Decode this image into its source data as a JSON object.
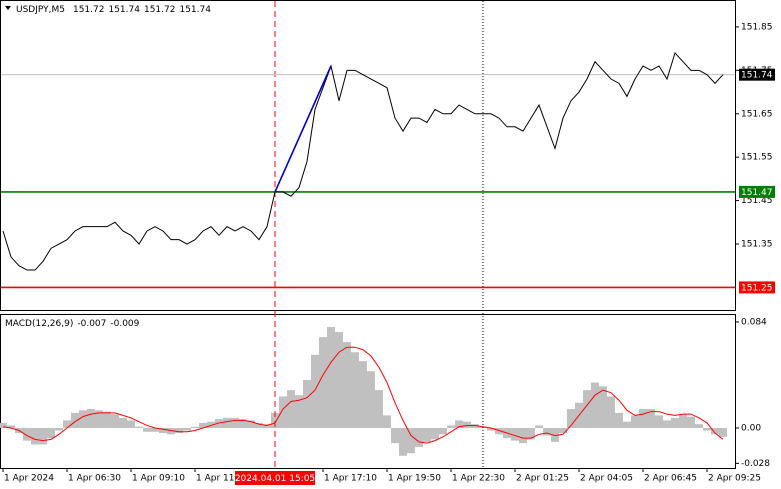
{
  "chart_data": [
    {
      "type": "line",
      "title": "USDJPY,M5",
      "ohlc": [
        151.72,
        151.74,
        151.72,
        151.74
      ],
      "color": "#000000",
      "categories": [
        "1 Apr 2024",
        null,
        null,
        null,
        null,
        null,
        null,
        null,
        "1 Apr 06:30",
        null,
        null,
        null,
        null,
        null,
        null,
        null,
        "1 Apr 09:10",
        null,
        null,
        null,
        null,
        null,
        null,
        null,
        "1 Apr 11:50",
        null,
        null,
        null,
        null,
        null,
        null,
        null,
        null,
        null,
        null,
        null,
        null,
        null,
        null,
        null,
        "1 Apr 17:10",
        null,
        null,
        null,
        null,
        null,
        null,
        null,
        "1 Apr 19:50",
        null,
        null,
        null,
        null,
        null,
        null,
        null,
        "1 Apr 22:30",
        null,
        null,
        null,
        null,
        null,
        null,
        null,
        "2 Apr 01:25",
        null,
        null,
        null,
        null,
        null,
        null,
        null,
        "2 Apr 04:05",
        null,
        null,
        null,
        null,
        null,
        null,
        null,
        "2 Apr 06:45",
        null,
        null,
        null,
        null,
        null,
        null,
        null,
        "2 Apr 09:25",
        null,
        null
      ],
      "values": [
        151.38,
        151.32,
        151.3,
        151.29,
        151.29,
        151.31,
        151.34,
        151.35,
        151.36,
        151.38,
        151.39,
        151.39,
        151.39,
        151.39,
        151.4,
        151.38,
        151.37,
        151.35,
        151.38,
        151.39,
        151.38,
        151.36,
        151.36,
        151.35,
        151.36,
        151.38,
        151.39,
        151.37,
        151.39,
        151.38,
        151.39,
        151.38,
        151.36,
        151.39,
        151.47,
        151.47,
        151.46,
        151.48,
        151.54,
        151.66,
        151.71,
        151.76,
        151.68,
        151.75,
        151.75,
        151.74,
        151.73,
        151.72,
        151.71,
        151.64,
        151.61,
        151.64,
        151.64,
        151.63,
        151.66,
        151.65,
        151.65,
        151.67,
        151.66,
        151.65,
        151.65,
        151.65,
        151.64,
        151.62,
        151.62,
        151.61,
        151.64,
        151.67,
        151.62,
        151.57,
        151.64,
        151.68,
        151.7,
        151.73,
        151.77,
        151.75,
        151.73,
        151.72,
        151.69,
        151.73,
        151.76,
        151.75,
        151.76,
        151.73,
        151.79,
        151.77,
        151.75,
        151.75,
        151.74,
        151.72,
        151.74
      ],
      "ylim": [
        151.198,
        151.912
      ],
      "yticks": [
        151.85,
        151.75,
        151.65,
        151.55,
        151.45,
        151.35
      ],
      "levels": [
        {
          "value": 151.74,
          "color": "#c0c0c0",
          "label_color": "#000000"
        },
        {
          "value": 151.47,
          "color": "#008000",
          "label_color": "#008000"
        },
        {
          "value": 151.25,
          "color": "#ff0000",
          "label_color": "#ff0000"
        }
      ],
      "trendline": {
        "from": [
          34,
          151.47
        ],
        "to": [
          41,
          151.76
        ],
        "color": "#0000cc"
      },
      "crosshair": {
        "index": 34,
        "label": "2024.04.01 15:05",
        "color": "#ff0000"
      },
      "separator_index": 60
    },
    {
      "type": "macd",
      "title": "MACD(12,26,9)",
      "readings": [
        -0.007,
        -0.009
      ],
      "ylim": [
        -0.0317,
        0.0903
      ],
      "yticks": [
        0.084,
        {
          "value": 0,
          "label": "0.00"
        },
        -0.028
      ],
      "series": [
        {
          "kind": "bar",
          "color": "#c0c0c0",
          "values": [
            0.004,
            0.002,
            -0.004,
            -0.01,
            -0.013,
            -0.013,
            -0.008,
            -0.002,
            0.006,
            0.012,
            0.014,
            0.015,
            0.014,
            0.013,
            0.011,
            0.008,
            0.006,
            0.001,
            -0.003,
            -0.003,
            -0.004,
            -0.005,
            -0.004,
            -0.002,
            0.001,
            0.004,
            0.005,
            0.007,
            0.008,
            0.008,
            0.007,
            0.006,
            0.004,
            0.003,
            0.012,
            0.025,
            0.03,
            0.026,
            0.038,
            0.058,
            0.072,
            0.08,
            0.076,
            0.068,
            0.06,
            0.053,
            0.045,
            0.03,
            0.01,
            -0.012,
            -0.022,
            -0.02,
            -0.015,
            -0.011,
            -0.009,
            -0.005,
            0.002,
            0.006,
            0.005,
            0.003,
            0.001,
            -0.002,
            -0.005,
            -0.008,
            -0.01,
            -0.012,
            -0.009,
            0.002,
            -0.006,
            -0.011,
            -0.004,
            0.015,
            0.02,
            0.03,
            0.036,
            0.033,
            0.025,
            0.012,
            0.005,
            0.01,
            0.015,
            0.015,
            0.01,
            0.006,
            0.008,
            0.011,
            0.009,
            0.003,
            -0.002,
            -0.005,
            -0.007
          ]
        },
        {
          "kind": "line",
          "color": "#ff0000",
          "values": [
            0.001,
            0.0,
            -0.002,
            -0.006,
            -0.009,
            -0.01,
            -0.009,
            -0.005,
            0.0,
            0.005,
            0.009,
            0.011,
            0.012,
            0.012,
            0.012,
            0.01,
            0.008,
            0.005,
            0.002,
            0.0,
            -0.001,
            -0.002,
            -0.003,
            -0.003,
            -0.002,
            0.0,
            0.002,
            0.004,
            0.005,
            0.006,
            0.006,
            0.005,
            0.003,
            0.002,
            0.004,
            0.015,
            0.021,
            0.022,
            0.024,
            0.03,
            0.042,
            0.052,
            0.06,
            0.064,
            0.064,
            0.062,
            0.057,
            0.048,
            0.036,
            0.02,
            0.006,
            -0.006,
            -0.011,
            -0.012,
            -0.01,
            -0.007,
            -0.003,
            0.001,
            0.002,
            0.002,
            0.001,
            0.0,
            -0.002,
            -0.004,
            -0.006,
            -0.008,
            -0.008,
            -0.005,
            -0.004,
            -0.006,
            -0.005,
            0.002,
            0.01,
            0.018,
            0.026,
            0.03,
            0.028,
            0.022,
            0.014,
            0.01,
            0.011,
            0.013,
            0.013,
            0.011,
            0.01,
            0.011,
            0.011,
            0.008,
            0.004,
            -0.004,
            -0.009
          ]
        }
      ]
    }
  ]
}
